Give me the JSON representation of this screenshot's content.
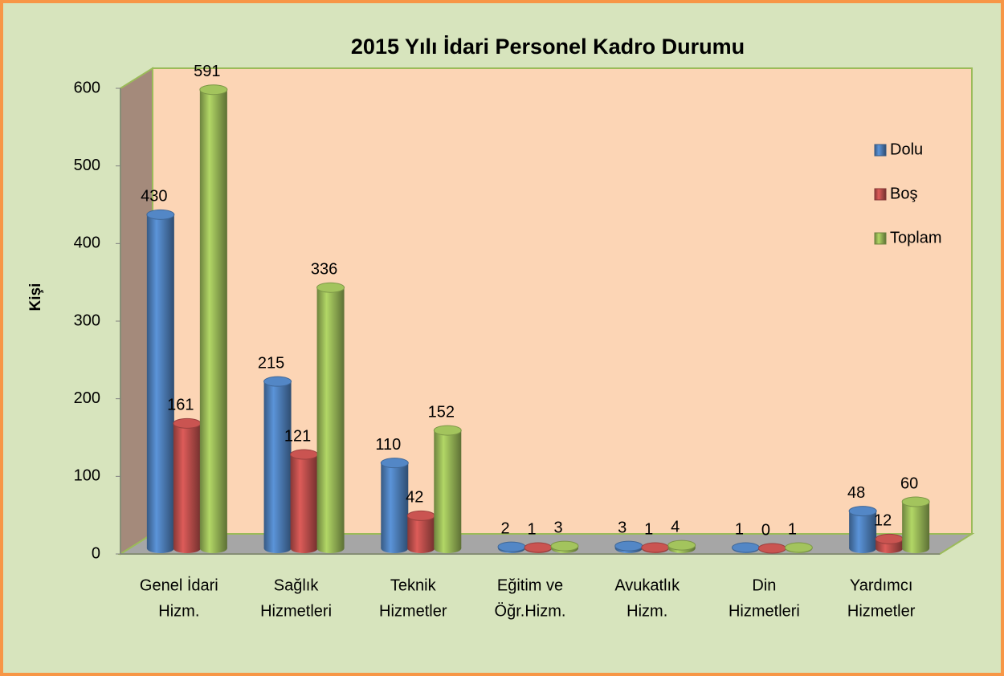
{
  "chart_data": {
    "type": "bar3d",
    "title": "2015 Yılı İdari Personel Kadro Durumu",
    "y_axis_label": "Kişi",
    "categories": [
      [
        "Genel İdari",
        "Hizm."
      ],
      [
        "Sağlık",
        "Hizmetleri"
      ],
      [
        "Teknik",
        "Hizmetler"
      ],
      [
        "Eğitim ve",
        "Öğr.Hizm."
      ],
      [
        "Avukatlık",
        "Hizm."
      ],
      [
        "Din",
        "Hizmetleri"
      ],
      [
        "Yardımcı",
        "Hizmetler"
      ]
    ],
    "series": [
      {
        "name": "Dolu",
        "color": "#4f81bd",
        "values": [
          430,
          215,
          110,
          2,
          3,
          1,
          48
        ]
      },
      {
        "name": "Boş",
        "color": "#c0504d",
        "values": [
          161,
          121,
          42,
          1,
          1,
          0,
          12
        ]
      },
      {
        "name": "Toplam",
        "color": "#9bbb59",
        "values": [
          591,
          336,
          152,
          3,
          4,
          1,
          60
        ]
      }
    ],
    "ylim": [
      0,
      600
    ],
    "yticks": [
      0,
      100,
      200,
      300,
      400,
      500,
      600
    ],
    "legend": "right"
  }
}
